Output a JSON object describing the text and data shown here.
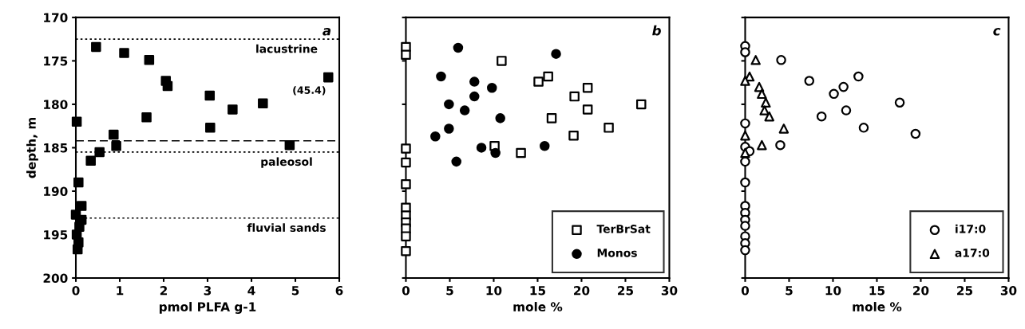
{
  "chart_data": [
    {
      "type": "scatter",
      "title": "a",
      "xlabel": "pmol PLFA g-1",
      "ylabel": "depth, m",
      "xlim": [
        0,
        6
      ],
      "xticks": [
        0,
        1,
        2,
        3,
        4,
        5,
        6
      ],
      "ylim": [
        200,
        170
      ],
      "yticks": [
        170,
        175,
        180,
        185,
        190,
        195,
        200
      ],
      "marker": "square",
      "series": [
        {
          "color": "#000000",
          "x": [
            0.46,
            1.1,
            1.67,
            2.05,
            2.09,
            5.75,
            3.05,
            3.57,
            4.26,
            1.61,
            3.06,
            0.02,
            0.86,
            0.92,
            4.87,
            0.54,
            0.34,
            0.06,
            0.13,
            0.0,
            0.13,
            0.08,
            0.02,
            0.06,
            null,
            0.04
          ],
          "values": [
            173.4,
            174.1,
            174.9,
            177.3,
            177.9,
            176.9,
            179.0,
            180.6,
            179.9,
            181.5,
            182.7,
            182.0,
            183.5,
            184.8,
            184.7,
            185.5,
            186.5,
            189.0,
            191.7,
            192.7,
            193.3,
            194.1,
            195.0,
            195.9,
            null,
            196.7
          ]
        }
      ],
      "ref_lines": [
        {
          "axis": "y",
          "value": 172.5,
          "label": "lacustrine",
          "line_style": "dotted"
        },
        {
          "axis": "y",
          "value": 184.2,
          "label": null,
          "line_style": "dashed"
        },
        {
          "axis": "y",
          "value": 185.5,
          "label": "paleosol",
          "line_style": "dotted"
        },
        {
          "axis": "y",
          "value": 193.1,
          "label": "fluvial sands",
          "line_style": "dotted"
        }
      ],
      "annotations": [
        {
          "text": "(45.4)",
          "x": 5.75,
          "y": 176.9
        }
      ]
    },
    {
      "type": "scatter",
      "title": "b",
      "xlabel": "mole %",
      "xlim": [
        0,
        30
      ],
      "xticks": [
        0,
        5,
        10,
        15,
        20,
        25,
        30
      ],
      "ylim": [
        200,
        170
      ],
      "yticks": [
        170,
        175,
        180,
        185,
        190,
        195,
        200
      ],
      "tick_labels": "x",
      "legend": "bottom right",
      "series": [
        {
          "name": "TerBrSat",
          "marker": "square",
          "color": "#ffffff",
          "x": [
            0,
            0,
            10.9,
            15.1,
            16.2,
            20.7,
            19.2,
            26.8,
            20.7,
            16.6,
            23.1,
            19.1,
            10.1,
            13.1,
            0,
            0,
            0,
            0,
            0,
            0,
            0,
            0,
            null,
            0
          ],
          "values": [
            173.4,
            174.3,
            175.0,
            177.4,
            176.8,
            178.1,
            179.1,
            180.0,
            180.6,
            181.6,
            182.7,
            183.6,
            184.8,
            185.6,
            185.1,
            186.7,
            189.2,
            191.9,
            192.8,
            193.6,
            194.3,
            195.2,
            null,
            196.9
          ]
        },
        {
          "name": "Monos",
          "marker": "circle",
          "color": "#000000",
          "x": [
            5.95,
            17.1,
            4.0,
            7.8,
            9.8,
            7.8,
            4.9,
            6.7,
            10.75,
            4.9,
            3.35,
            8.6,
            10.2,
            15.8,
            5.75
          ],
          "values": [
            173.5,
            174.2,
            176.8,
            177.4,
            178.1,
            179.1,
            180.0,
            180.7,
            181.6,
            182.8,
            183.7,
            185.0,
            185.6,
            184.8,
            186.6
          ]
        }
      ]
    },
    {
      "type": "scatter",
      "title": "c",
      "xlabel": "mole %",
      "xlim": [
        0,
        30
      ],
      "xticks": [
        0,
        5,
        10,
        15,
        20,
        25,
        30
      ],
      "ylim": [
        200,
        170
      ],
      "yticks": [
        170,
        175,
        180,
        185,
        190,
        195,
        200
      ],
      "tick_labels": "x",
      "legend": "bottom right",
      "series": [
        {
          "name": "i17:0",
          "marker": "circle",
          "color": "#ffffff",
          "x": [
            0,
            0,
            4.1,
            7.3,
            12.9,
            11.2,
            10.1,
            17.6,
            11.5,
            8.7,
            13.5,
            19.4,
            4.0,
            0,
            0,
            0.5,
            0,
            0,
            0,
            0,
            0,
            0,
            0,
            0,
            0
          ],
          "values": [
            173.3,
            174.0,
            174.9,
            177.3,
            176.8,
            178.0,
            178.8,
            179.8,
            180.7,
            181.4,
            182.7,
            183.4,
            184.7,
            182.2,
            184.9,
            185.4,
            186.6,
            189.0,
            191.7,
            192.5,
            193.3,
            194.0,
            195.2,
            196.0,
            196.8
          ]
        },
        {
          "name": "a17:0",
          "marker": "triangle",
          "color": "#ffffff",
          "x": [
            1.2,
            0.5,
            0,
            1.6,
            1.9,
            2.35,
            2.2,
            2.75,
            4.4,
            0,
            1.9,
            0
          ],
          "values": [
            174.9,
            176.8,
            177.3,
            178.0,
            178.8,
            179.8,
            180.7,
            181.4,
            182.8,
            183.6,
            184.7,
            185.6
          ]
        }
      ]
    }
  ]
}
